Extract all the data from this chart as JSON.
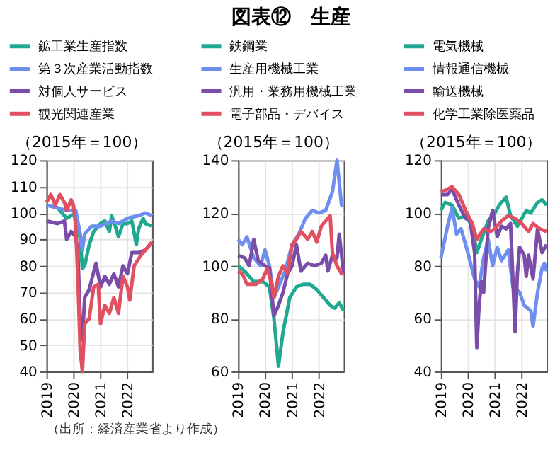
{
  "chart_data": [
    {
      "type": "line",
      "annotations": [
        "（出所：経済産業省より作成）"
      ],
      "ylabel": "（2015年＝100）",
      "xlim": [
        "2019-01",
        "2022-12"
      ],
      "xticks": [
        "2019",
        "2020",
        "2021",
        "2022"
      ],
      "ylim": [
        40,
        120
      ],
      "yticks": [
        40,
        50,
        60,
        70,
        80,
        90,
        100,
        110,
        120
      ],
      "grid": true,
      "legend": "top",
      "line_style": "solid",
      "series": [
        {
          "name": "鉱工業生産指数",
          "color": "#20a990",
          "x": [
            "2019-01",
            "2019-06",
            "2019-10",
            "2019-12",
            "2020-02",
            "2020-04",
            "2020-05",
            "2020-06",
            "2020-08",
            "2020-10",
            "2021-01",
            "2021-03",
            "2021-05",
            "2021-06",
            "2021-08",
            "2021-09",
            "2021-11",
            "2022-01",
            "2022-03",
            "2022-05",
            "2022-06",
            "2022-08",
            "2022-09",
            "2022-12"
          ],
          "values": [
            103,
            102,
            98,
            99,
            100,
            90,
            79,
            80,
            88,
            93,
            96,
            97,
            93,
            99,
            94,
            91,
            96,
            96,
            97,
            88,
            94,
            98,
            96,
            95
          ]
        },
        {
          "name": "第３次産業活動指数",
          "color": "#6f8ff0",
          "x": [
            "2019-01",
            "2019-10",
            "2020-02",
            "2020-04",
            "2020-05",
            "2020-06",
            "2020-09",
            "2021-01",
            "2021-06",
            "2021-09",
            "2022-01",
            "2022-06",
            "2022-09",
            "2022-12"
          ],
          "values": [
            103,
            101,
            101,
            92,
            86,
            92,
            95,
            95,
            97,
            96,
            98,
            99,
            100,
            99
          ]
        },
        {
          "name": "対個人サービス",
          "color": "#7a4ea8",
          "x": [
            "2019-01",
            "2019-06",
            "2019-09",
            "2019-10",
            "2019-12",
            "2020-02",
            "2020-03",
            "2020-04",
            "2020-05",
            "2020-06",
            "2020-08",
            "2020-11",
            "2021-01",
            "2021-03",
            "2021-05",
            "2021-07",
            "2021-09",
            "2021-11",
            "2022-01",
            "2022-03",
            "2022-06",
            "2022-09",
            "2022-12"
          ],
          "values": [
            97,
            96,
            97,
            90,
            93,
            91,
            85,
            60,
            52,
            68,
            71,
            81,
            72,
            76,
            73,
            77,
            72,
            80,
            77,
            85,
            85,
            86,
            89
          ]
        },
        {
          "name": "観光関連産業",
          "color": "#e05060",
          "x": [
            "2019-01",
            "2019-03",
            "2019-05",
            "2019-07",
            "2019-09",
            "2019-10",
            "2019-12",
            "2020-01",
            "2020-02",
            "2020-03",
            "2020-04",
            "2020-05",
            "2020-06",
            "2020-08",
            "2020-10",
            "2020-12",
            "2021-01",
            "2021-03",
            "2021-05",
            "2021-07",
            "2021-09",
            "2021-11",
            "2022-01",
            "2022-02",
            "2022-04",
            "2022-07",
            "2022-09",
            "2022-12"
          ],
          "values": [
            104,
            107,
            103,
            107,
            104,
            101,
            105,
            103,
            95,
            75,
            48,
            40,
            58,
            60,
            72,
            73,
            58,
            65,
            62,
            68,
            62,
            76,
            72,
            67,
            80,
            84,
            86,
            89
          ]
        }
      ]
    },
    {
      "type": "line",
      "title": "図表⑫　生産",
      "ylabel": "（2015年＝100）",
      "xlim": [
        "2019-01",
        "2022-12"
      ],
      "xticks": [
        "2019",
        "2020",
        "2021",
        "2022"
      ],
      "ylim": [
        60,
        140
      ],
      "yticks": [
        60,
        80,
        100,
        120,
        140
      ],
      "grid": true,
      "legend": "top",
      "line_style": "solid",
      "series": [
        {
          "name": "鉄鋼業",
          "color": "#20a990",
          "x": [
            "2019-01",
            "2019-04",
            "2019-08",
            "2019-12",
            "2020-03",
            "2020-05",
            "2020-07",
            "2020-09",
            "2020-12",
            "2021-03",
            "2021-06",
            "2021-09",
            "2021-12",
            "2022-03",
            "2022-06",
            "2022-08",
            "2022-10",
            "2022-12"
          ],
          "values": [
            100,
            98,
            94,
            94,
            92,
            80,
            62,
            75,
            88,
            92,
            93,
            93,
            91,
            88,
            85,
            84,
            86,
            83
          ]
        },
        {
          "name": "生産用機械工業",
          "color": "#6f8ff0",
          "x": [
            "2019-01",
            "2019-03",
            "2019-05",
            "2019-08",
            "2019-11",
            "2020-01",
            "2020-03",
            "2020-05",
            "2020-07",
            "2020-10",
            "2021-01",
            "2021-04",
            "2021-07",
            "2021-10",
            "2022-01",
            "2022-04",
            "2022-07",
            "2022-09",
            "2022-11",
            "2022-12"
          ],
          "values": [
            110,
            108,
            111,
            103,
            100,
            106,
            100,
            88,
            92,
            98,
            108,
            112,
            118,
            121,
            120,
            121,
            128,
            140,
            123,
            123
          ]
        },
        {
          "name": "汎用・業務用機械工業",
          "color": "#7a4ea8",
          "x": [
            "2019-01",
            "2019-04",
            "2019-06",
            "2019-08",
            "2019-10",
            "2020-01",
            "2020-03",
            "2020-05",
            "2020-07",
            "2020-09",
            "2020-11",
            "2021-01",
            "2021-03",
            "2021-05",
            "2021-08",
            "2021-11",
            "2022-02",
            "2022-04",
            "2022-05",
            "2022-07",
            "2022-09",
            "2022-10",
            "2022-12"
          ],
          "values": [
            104,
            103,
            100,
            110,
            102,
            100,
            99,
            81,
            85,
            90,
            97,
            100,
            108,
            98,
            101,
            100,
            101,
            104,
            98,
            104,
            103,
            112,
            97
          ]
        },
        {
          "name": "電子部品・デバイス",
          "color": "#e05060",
          "x": [
            "2019-01",
            "2019-03",
            "2019-05",
            "2019-09",
            "2019-12",
            "2020-02",
            "2020-04",
            "2020-05",
            "2020-07",
            "2020-09",
            "2020-11",
            "2021-01",
            "2021-03",
            "2021-05",
            "2021-08",
            "2021-10",
            "2021-12",
            "2022-02",
            "2022-04",
            "2022-06",
            "2022-07",
            "2022-09",
            "2022-11",
            "2022-12"
          ],
          "values": [
            98,
            97,
            93,
            93,
            95,
            99,
            93,
            88,
            96,
            100,
            97,
            108,
            110,
            113,
            110,
            113,
            109,
            115,
            117,
            119,
            105,
            100,
            97,
            97
          ]
        }
      ]
    },
    {
      "type": "line",
      "ylabel": "（2015年＝100）",
      "xlim": [
        "2019-01",
        "2022-12"
      ],
      "xticks": [
        "2019",
        "2020",
        "2021",
        "2022"
      ],
      "ylim": [
        40,
        120
      ],
      "yticks": [
        40,
        60,
        80,
        100,
        120
      ],
      "grid": true,
      "legend": "top",
      "line_style": "solid",
      "series": [
        {
          "name": "電気機械",
          "color": "#20a990",
          "x": [
            "2019-01",
            "2019-03",
            "2019-06",
            "2019-09",
            "2019-12",
            "2020-03",
            "2020-05",
            "2020-07",
            "2020-10",
            "2021-01",
            "2021-03",
            "2021-06",
            "2021-08",
            "2021-11",
            "2022-01",
            "2022-03",
            "2022-05",
            "2022-08",
            "2022-10",
            "2022-12"
          ],
          "values": [
            101,
            104,
            103,
            98,
            99,
            95,
            85,
            90,
            97,
            100,
            103,
            106,
            99,
            95,
            98,
            101,
            100,
            104,
            105,
            103
          ]
        },
        {
          "name": "情報通信機械",
          "color": "#6f8ff0",
          "x": [
            "2019-01",
            "2019-04",
            "2019-06",
            "2019-08",
            "2019-10",
            "2020-01",
            "2020-04",
            "2020-06",
            "2020-08",
            "2020-10",
            "2020-12",
            "2021-02",
            "2021-04",
            "2021-07",
            "2021-09",
            "2021-12",
            "2022-02",
            "2022-05",
            "2022-06",
            "2022-08",
            "2022-10",
            "2022-11",
            "2022-12"
          ],
          "values": [
            83,
            95,
            102,
            92,
            94,
            85,
            75,
            72,
            83,
            90,
            80,
            87,
            82,
            86,
            72,
            70,
            65,
            63,
            57,
            70,
            79,
            81,
            78
          ]
        },
        {
          "name": "輸送機械",
          "color": "#7a4ea8",
          "x": [
            "2019-01",
            "2019-04",
            "2019-06",
            "2019-09",
            "2019-12",
            "2020-02",
            "2020-04",
            "2020-05",
            "2020-06",
            "2020-07",
            "2020-08",
            "2020-10",
            "2020-12",
            "2021-02",
            "2021-04",
            "2021-06",
            "2021-08",
            "2021-10",
            "2021-11",
            "2021-12",
            "2022-02",
            "2022-03",
            "2022-04",
            "2022-06",
            "2022-08",
            "2022-10",
            "2022-12"
          ],
          "values": [
            107,
            107,
            109,
            103,
            98,
            97,
            85,
            49,
            65,
            74,
            70,
            94,
            101,
            91,
            95,
            94,
            96,
            55,
            77,
            87,
            84,
            76,
            84,
            75,
            94,
            85,
            88
          ]
        },
        {
          "name": "化学工業除医薬品",
          "color": "#e05060",
          "x": [
            "2019-01",
            "2019-04",
            "2019-06",
            "2019-09",
            "2019-12",
            "2020-03",
            "2020-05",
            "2020-08",
            "2020-11",
            "2021-01",
            "2021-04",
            "2021-07",
            "2021-10",
            "2022-01",
            "2022-04",
            "2022-06",
            "2022-09",
            "2022-12"
          ],
          "values": [
            108,
            109,
            110,
            107,
            101,
            96,
            90,
            94,
            93,
            94,
            97,
            99,
            98,
            96,
            93,
            96,
            94,
            93
          ]
        }
      ]
    }
  ]
}
